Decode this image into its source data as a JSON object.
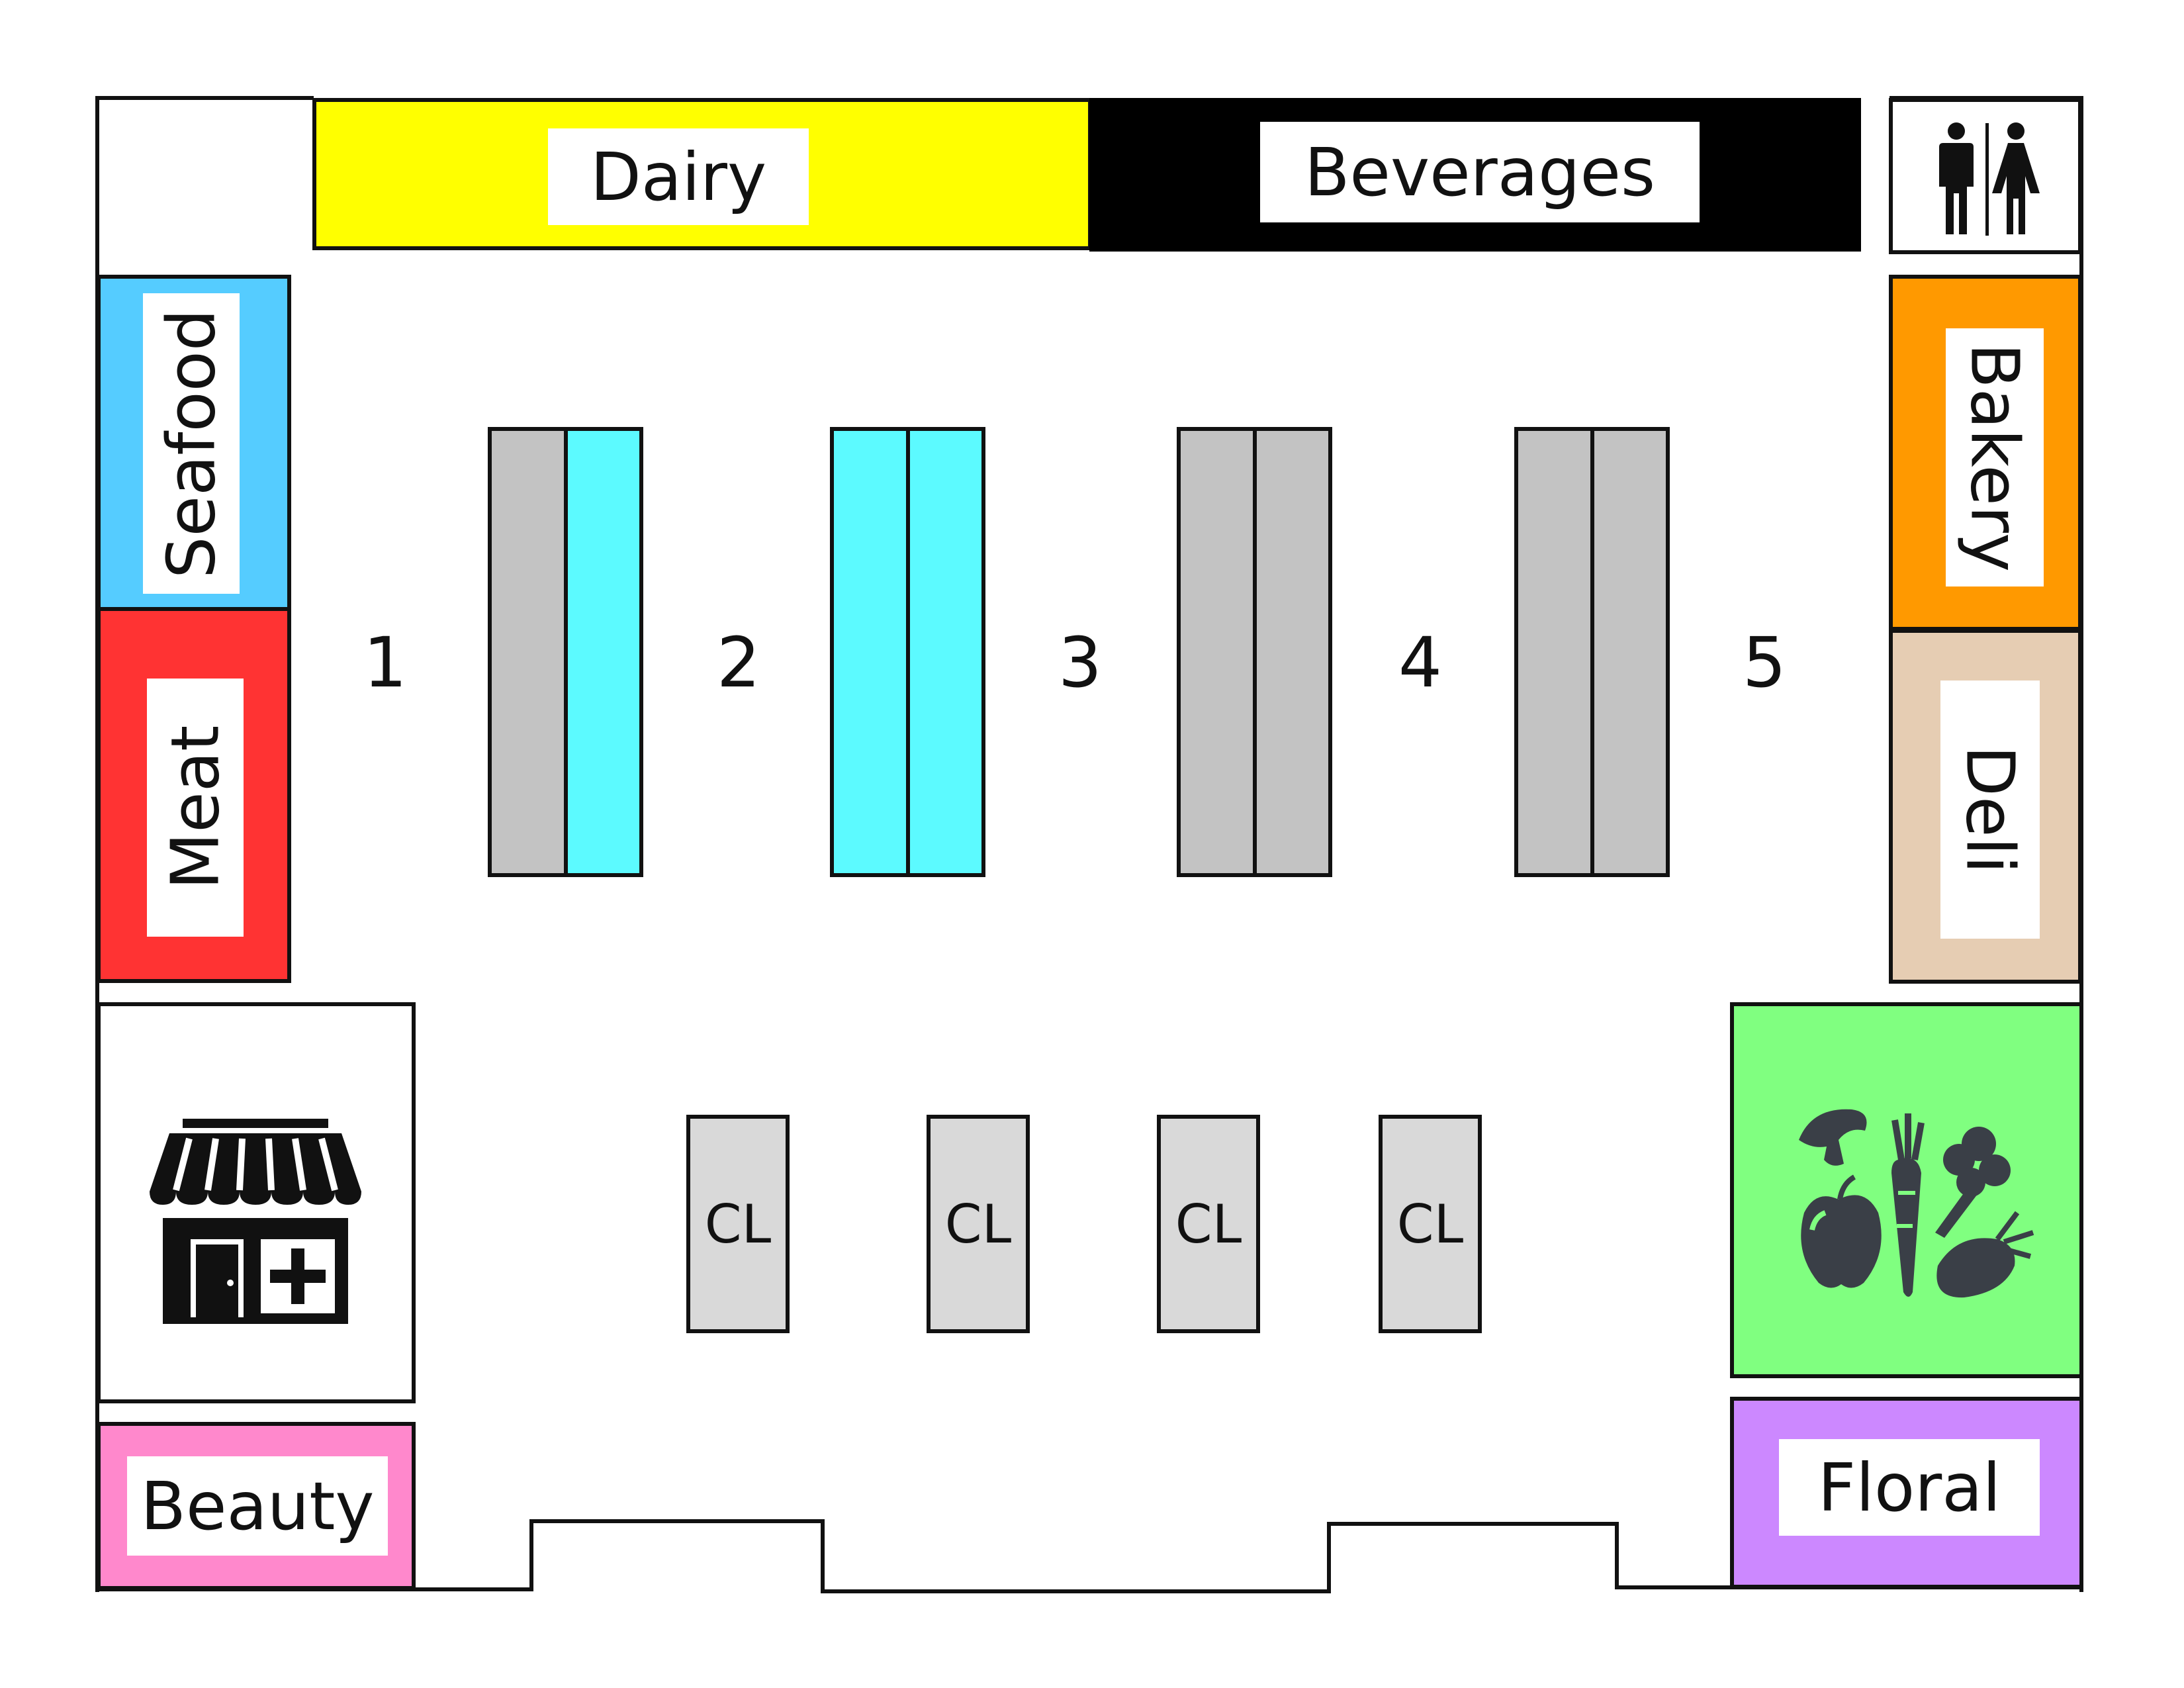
{
  "departments": {
    "dairy": {
      "label": "Dairy",
      "color": "#ffff00"
    },
    "beverages": {
      "label": "Beverages",
      "color": "#000000"
    },
    "seafood": {
      "label": "Seafood",
      "color": "#55ccff"
    },
    "meat": {
      "label": "Meat",
      "color": "#ff3333"
    },
    "bakery": {
      "label": "Bakery",
      "color": "#ff9900"
    },
    "deli": {
      "label": "Deli",
      "color": "#e6cdb3"
    },
    "beauty": {
      "label": "Beauty",
      "color": "#ff88cc"
    },
    "floral": {
      "label": "Floral",
      "color": "#cc88ff"
    },
    "produce": {
      "color": "#80ff80",
      "icon": "produce-icon"
    },
    "pharmacy": {
      "icon": "pharmacy-store-icon"
    },
    "restroom": {
      "icon": "restroom-icon"
    }
  },
  "aisles": [
    {
      "number": "1"
    },
    {
      "number": "2"
    },
    {
      "number": "3"
    },
    {
      "number": "4"
    },
    {
      "number": "5"
    }
  ],
  "shelf_colors": {
    "gray": "#c3c3c3",
    "cyan": "#5cfaff"
  },
  "checkout_lanes": [
    {
      "label": "CL"
    },
    {
      "label": "CL"
    },
    {
      "label": "CL"
    },
    {
      "label": "CL"
    }
  ]
}
